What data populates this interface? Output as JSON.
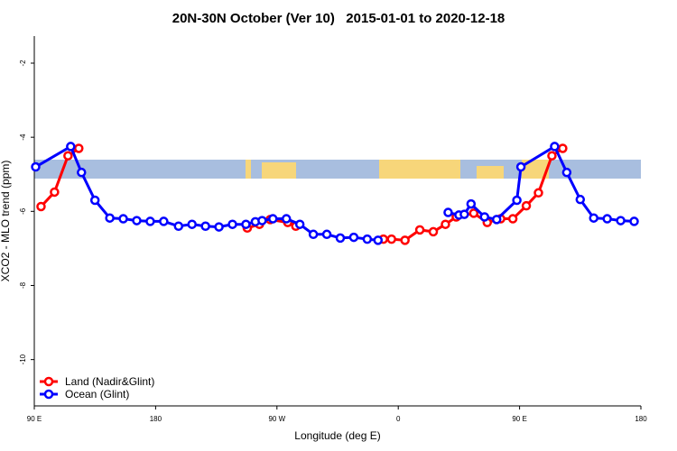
{
  "chart_data": {
    "type": "line",
    "title": "20N-30N October (Ver 10)   2015-01-01 to 2020-12-18",
    "x_label": "Longitude (deg E)",
    "y_label": "XCO2 - MLO trend (ppm)",
    "xlim": [
      90,
      540
    ],
    "ylim": [
      -11.25,
      -1.27
    ],
    "xticks": [
      {
        "value": 90,
        "label": "90 E"
      },
      180,
      {
        "value": 270,
        "label": "90 W"
      },
      {
        "value": 360,
        "label": "0"
      },
      {
        "value": 450,
        "label": "90 E"
      },
      {
        "value": 540,
        "label": "180"
      }
    ],
    "yticks": [
      -10,
      -8,
      -6,
      -4,
      -2
    ],
    "legend": "bottom-left",
    "series": [
      {
        "name": "Land (Nadir&Glint)",
        "color": "#ff0000",
        "x": [
          95,
          105,
          115,
          123,
          null,
          248,
          257,
          265,
          278,
          284,
          null,
          349,
          355,
          365,
          376,
          386,
          395,
          403,
          416,
          426,
          436,
          445,
          455,
          464,
          474,
          482
        ],
        "values": [
          -5.87,
          -5.48,
          -4.5,
          -4.3,
          null,
          -6.45,
          -6.35,
          -6.22,
          -6.3,
          -6.4,
          null,
          -6.75,
          -6.75,
          -6.78,
          -6.5,
          -6.55,
          -6.35,
          -6.15,
          -6.05,
          -6.3,
          -6.2,
          -6.2,
          -5.85,
          -5.5,
          -4.5,
          -4.3
        ]
      },
      {
        "name": "Ocean (Glint)",
        "color": "#0000ff",
        "x": [
          91,
          117,
          125,
          135,
          146,
          156,
          166,
          176,
          186,
          197,
          207,
          217,
          227,
          237,
          247,
          254,
          259,
          267,
          277,
          287,
          297,
          307,
          317,
          327,
          337,
          345,
          null,
          397,
          405,
          409,
          414,
          424,
          433,
          448,
          451,
          476,
          485,
          495,
          505,
          515,
          525,
          535
        ],
        "values": [
          -4.8,
          -4.25,
          -4.95,
          -5.7,
          -6.18,
          -6.2,
          -6.25,
          -6.27,
          -6.27,
          -6.4,
          -6.35,
          -6.4,
          -6.42,
          -6.35,
          -6.35,
          -6.28,
          -6.25,
          -6.2,
          -6.2,
          -6.35,
          -6.62,
          -6.62,
          -6.72,
          -6.7,
          -6.75,
          -6.78,
          null,
          -6.03,
          -6.1,
          -6.08,
          -5.8,
          -6.15,
          -6.22,
          -5.7,
          -4.8,
          -4.25,
          -4.95,
          -5.68,
          -6.18,
          -6.2,
          -6.25,
          -6.27
        ]
      }
    ]
  }
}
